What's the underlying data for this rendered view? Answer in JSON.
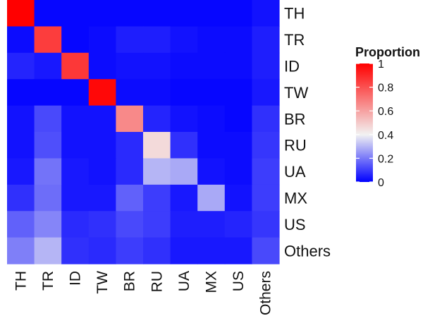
{
  "chart_data": {
    "type": "heatmap",
    "title": "",
    "xlabel": "",
    "ylabel": "",
    "x_categories": [
      "TH",
      "TR",
      "ID",
      "TW",
      "BR",
      "RU",
      "UA",
      "MX",
      "US",
      "Others"
    ],
    "y_categories": [
      "TH",
      "TR",
      "ID",
      "TW",
      "BR",
      "RU",
      "UA",
      "MX",
      "US",
      "Others"
    ],
    "values": [
      [
        1.0,
        0.01,
        0.01,
        0.01,
        0.01,
        0.01,
        0.01,
        0.01,
        0.01,
        0.03
      ],
      [
        0.02,
        0.85,
        0.01,
        0.02,
        0.05,
        0.05,
        0.03,
        0.02,
        0.02,
        0.05
      ],
      [
        0.06,
        0.04,
        0.86,
        0.02,
        0.03,
        0.03,
        0.02,
        0.02,
        0.02,
        0.05
      ],
      [
        0.01,
        0.01,
        0.01,
        0.98,
        0.02,
        0.02,
        0.01,
        0.01,
        0.01,
        0.04
      ],
      [
        0.03,
        0.12,
        0.03,
        0.03,
        0.66,
        0.06,
        0.03,
        0.02,
        0.01,
        0.08
      ],
      [
        0.03,
        0.13,
        0.03,
        0.03,
        0.07,
        0.46,
        0.08,
        0.02,
        0.02,
        0.09
      ],
      [
        0.04,
        0.19,
        0.04,
        0.03,
        0.07,
        0.3,
        0.28,
        0.03,
        0.02,
        0.1
      ],
      [
        0.08,
        0.18,
        0.04,
        0.04,
        0.16,
        0.1,
        0.04,
        0.28,
        0.03,
        0.1
      ],
      [
        0.16,
        0.22,
        0.07,
        0.08,
        0.12,
        0.1,
        0.05,
        0.05,
        0.06,
        0.09
      ],
      [
        0.21,
        0.3,
        0.08,
        0.07,
        0.1,
        0.08,
        0.04,
        0.04,
        0.04,
        0.12
      ]
    ],
    "legend": {
      "title": "Proportion",
      "position": "right",
      "ticks": [
        0,
        0.2,
        0.4,
        0.6,
        0.8,
        1
      ],
      "tick_labels": [
        "0",
        "0.2",
        "0.4",
        "0.6",
        "0.8",
        "1"
      ]
    },
    "color_scale": {
      "low": "#0000ff",
      "mid": "#f2f2f2",
      "high": "#ff0000",
      "midpoint": 0.4,
      "limits": [
        0,
        1
      ]
    },
    "grid": false
  }
}
